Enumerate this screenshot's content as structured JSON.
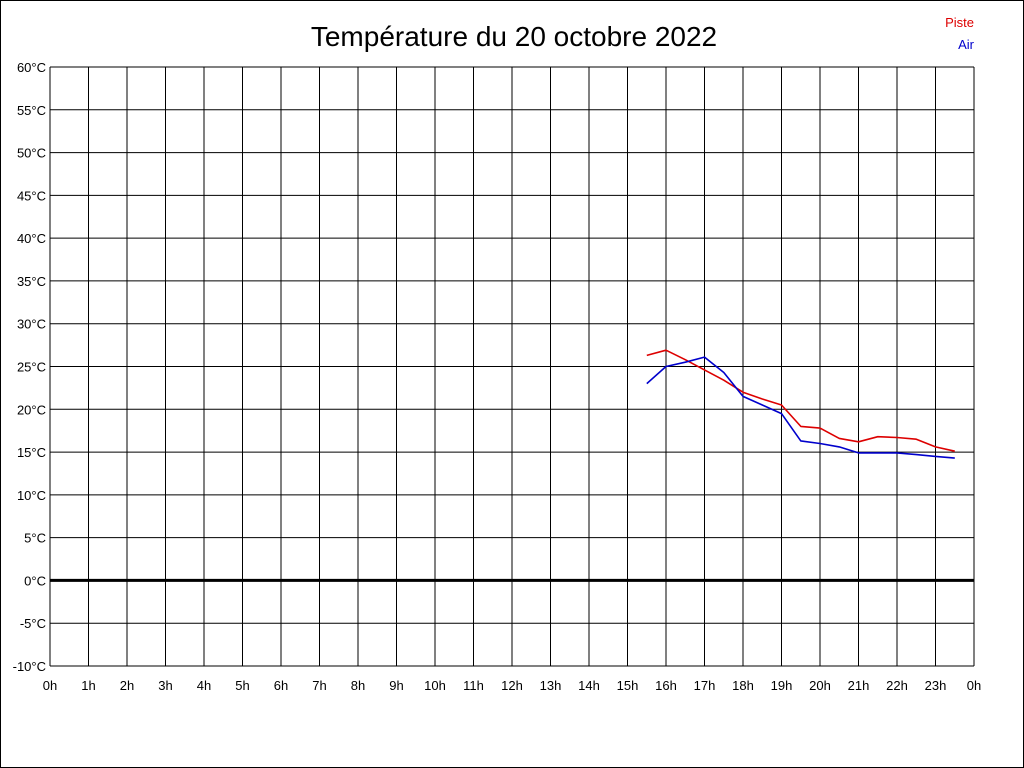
{
  "chart_data": {
    "type": "line",
    "title": "Température du 20 octobre 2022",
    "xlabel": "",
    "ylabel": "",
    "x_ticks": [
      "0h",
      "1h",
      "2h",
      "3h",
      "4h",
      "5h",
      "6h",
      "7h",
      "8h",
      "9h",
      "10h",
      "11h",
      "12h",
      "13h",
      "14h",
      "15h",
      "16h",
      "17h",
      "18h",
      "19h",
      "20h",
      "21h",
      "22h",
      "23h",
      "0h"
    ],
    "y_ticks": [
      "60°C",
      "55°C",
      "50°C",
      "45°C",
      "40°C",
      "35°C",
      "30°C",
      "25°C",
      "20°C",
      "15°C",
      "10°C",
      "5°C",
      "0°C",
      "-5°C",
      "-10°C"
    ],
    "xlim": [
      0,
      24
    ],
    "ylim": [
      -10,
      60
    ],
    "grid": true,
    "legend_position": "top-right",
    "series": [
      {
        "name": "Piste",
        "color": "#dd0000",
        "x": [
          15.5,
          16.0,
          16.5,
          17.0,
          17.5,
          18.0,
          18.5,
          19.0,
          19.5,
          20.0,
          20.5,
          21.0,
          21.5,
          22.0,
          22.5,
          23.0,
          23.5
        ],
        "y": [
          26.3,
          26.9,
          25.8,
          24.6,
          23.4,
          22.0,
          21.2,
          20.5,
          18.0,
          17.8,
          16.6,
          16.2,
          16.8,
          16.7,
          16.5,
          15.6,
          15.1
        ]
      },
      {
        "name": "Air",
        "color": "#0000cc",
        "x": [
          15.5,
          16.0,
          16.5,
          17.0,
          17.5,
          18.0,
          18.5,
          19.0,
          19.5,
          20.0,
          20.5,
          21.0,
          21.5,
          22.0,
          22.5,
          23.0,
          23.5
        ],
        "y": [
          23.0,
          25.0,
          25.5,
          26.1,
          24.3,
          21.5,
          20.5,
          19.5,
          16.3,
          16.0,
          15.6,
          14.9,
          14.9,
          14.9,
          14.7,
          14.5,
          14.3
        ]
      }
    ]
  }
}
